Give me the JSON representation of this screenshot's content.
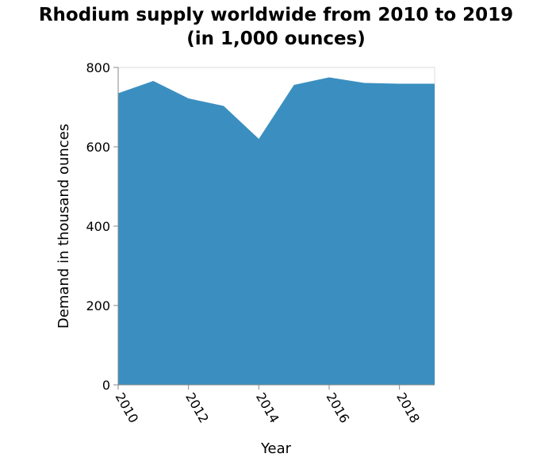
{
  "chart_data": {
    "type": "area",
    "title_line1": "Rhodium supply worldwide from 2010 to 2019",
    "title_line2": "(in 1,000 ounces)",
    "xlabel": "Year",
    "ylabel": "Demand in thousand ounces",
    "xlim": [
      2010,
      2019
    ],
    "ylim": [
      0,
      800
    ],
    "x_ticks": [
      2010,
      2012,
      2014,
      2016,
      2018
    ],
    "y_ticks": [
      0,
      200,
      400,
      600,
      800
    ],
    "x": [
      2010,
      2011,
      2012,
      2013,
      2014,
      2015,
      2016,
      2017,
      2018,
      2019
    ],
    "series": [
      {
        "values": [
          735,
          766,
          722,
          703,
          620,
          756,
          775,
          761,
          759,
          759
        ]
      }
    ],
    "fill_color": "#3a8fc0",
    "grid": false
  }
}
